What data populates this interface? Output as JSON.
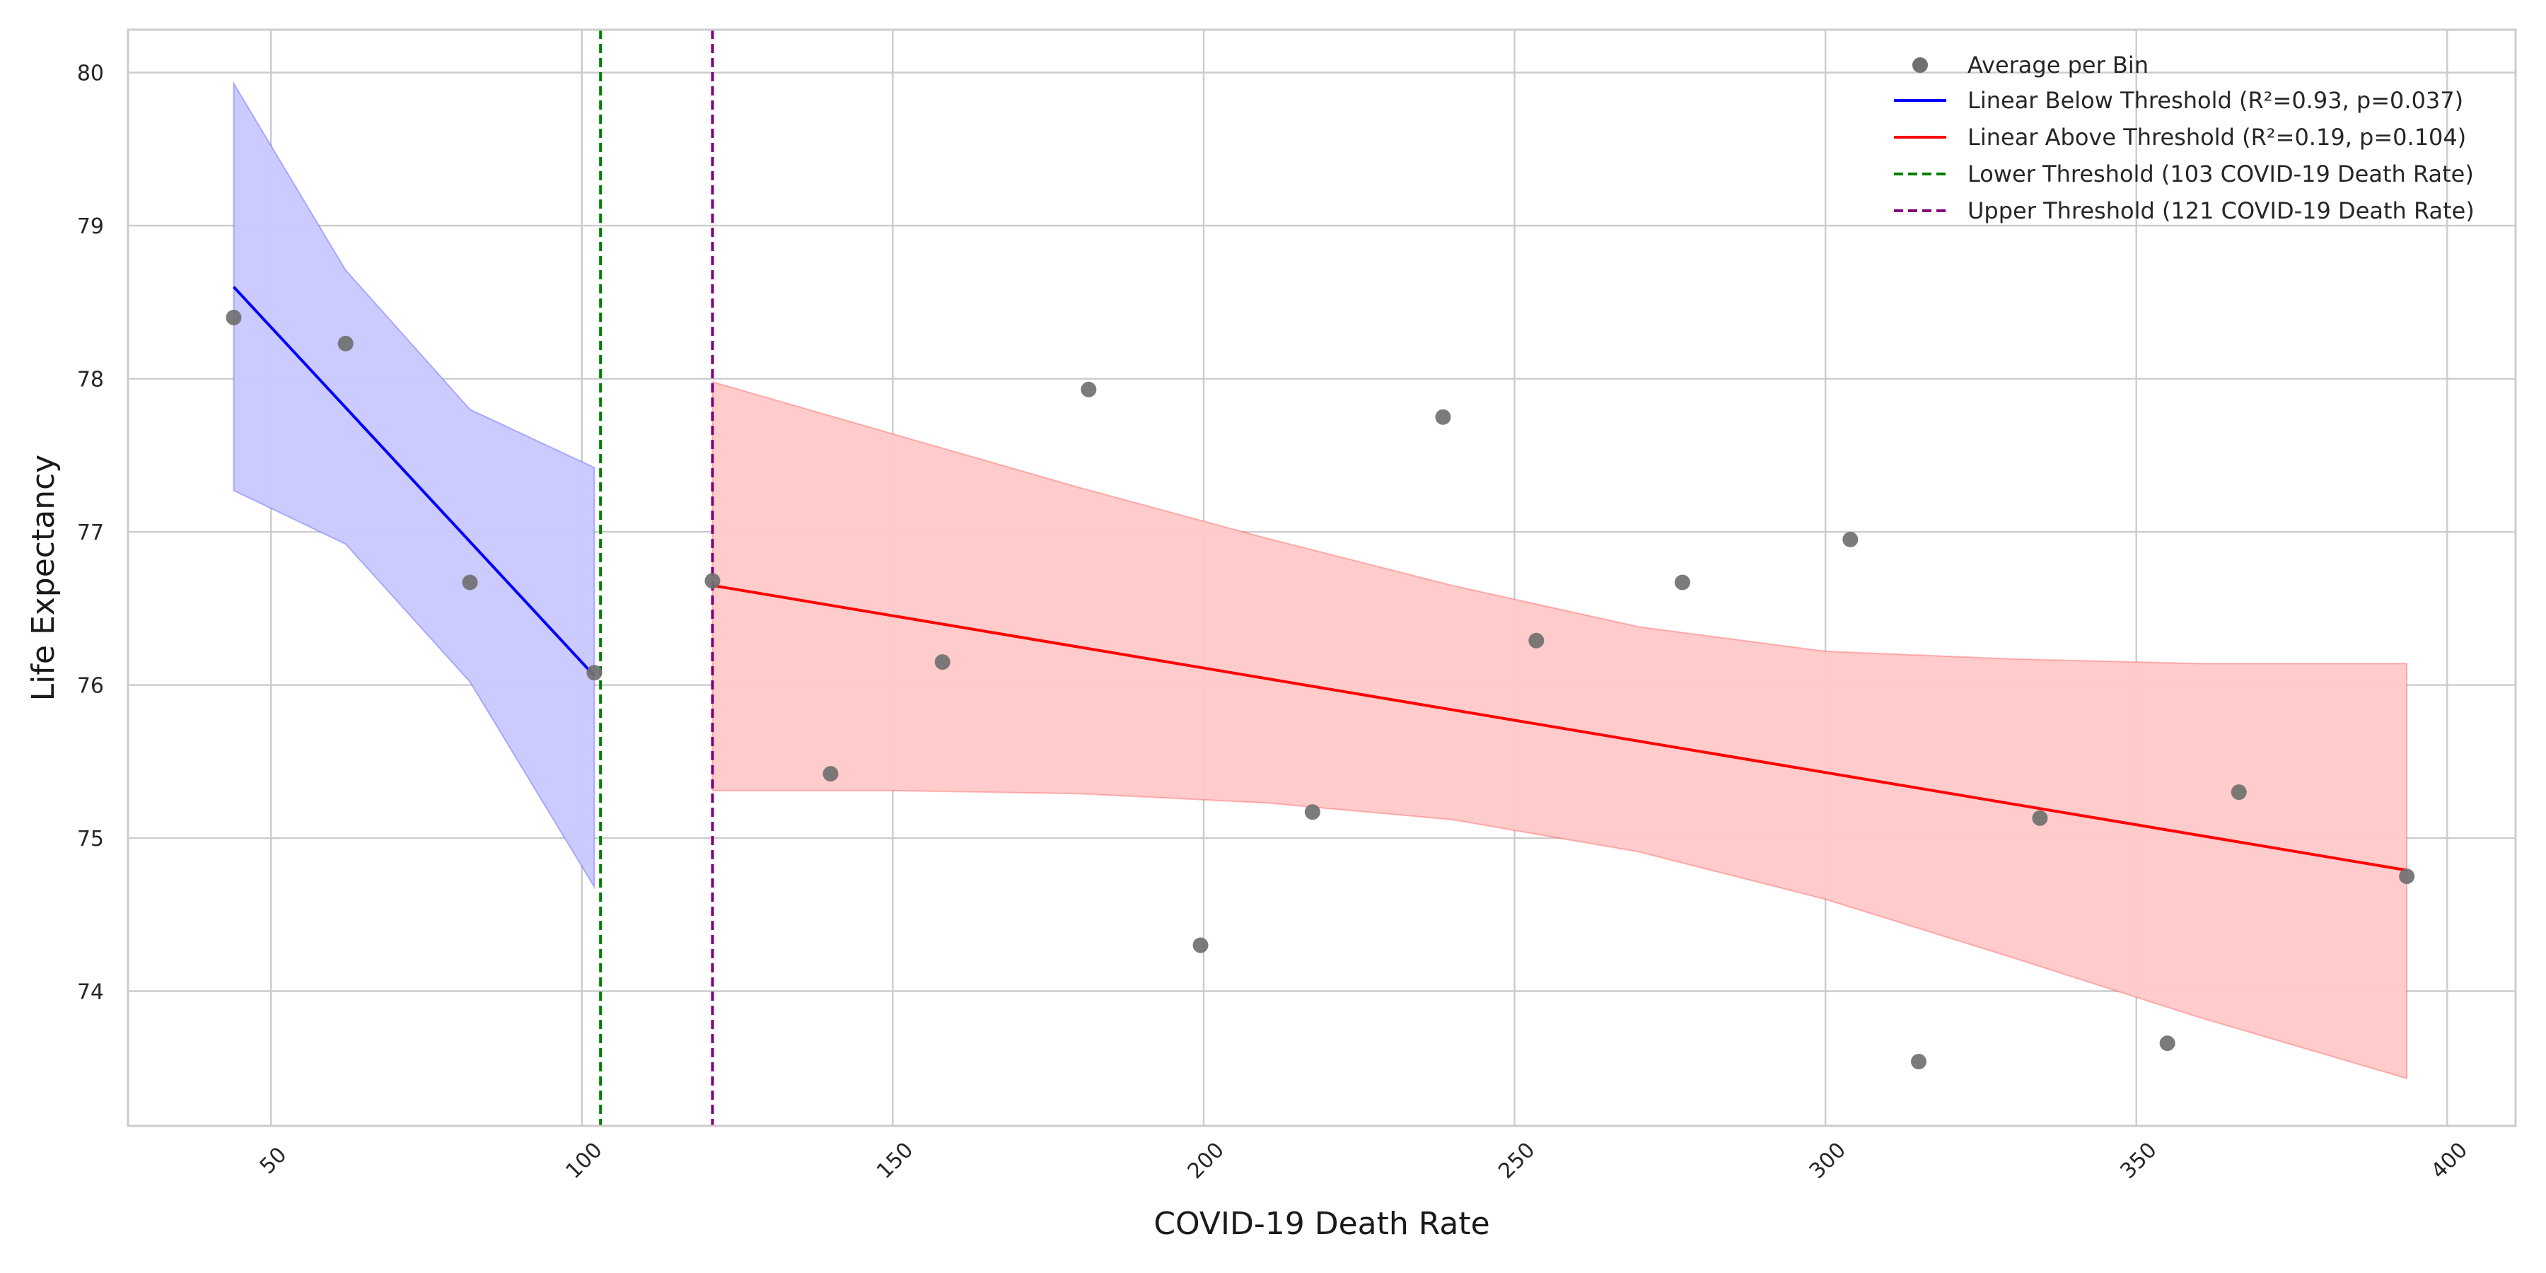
{
  "chart_data": {
    "type": "scatter",
    "title": "",
    "xlabel": "COVID-19 Death Rate",
    "ylabel": "Life Expectancy",
    "xlim": [
      27,
      411
    ],
    "ylim": [
      73.12,
      80.28
    ],
    "grid": true,
    "legend_position": "top-right",
    "x_ticks": [
      50,
      100,
      150,
      200,
      250,
      300,
      350,
      400
    ],
    "x_tick_labels": [
      "50",
      "100",
      "150",
      "200",
      "250",
      "300",
      "350",
      "400"
    ],
    "y_ticks": [
      74,
      75,
      76,
      77,
      78,
      79,
      80
    ],
    "y_tick_labels": [
      "74",
      "75",
      "76",
      "77",
      "78",
      "79",
      "80"
    ],
    "points": {
      "name": "Average per Bin",
      "color": "#707070",
      "x": [
        44,
        62,
        82,
        102,
        121,
        140,
        158,
        181.5,
        199.5,
        217.5,
        238.5,
        253.5,
        277,
        304,
        315,
        334.5,
        355,
        366.5,
        393.5
      ],
      "y": [
        78.4,
        78.23,
        76.67,
        76.08,
        76.68,
        75.42,
        76.15,
        77.93,
        74.3,
        75.17,
        77.75,
        76.29,
        76.67,
        76.95,
        73.54,
        75.13,
        73.66,
        75.3,
        74.75
      ]
    },
    "series": [
      {
        "name": "Linear Below Threshold (R²=0.93, p=0.037)",
        "color": "#0000ff",
        "band_color": "#c8c8ff",
        "x": [
          44,
          102
        ],
        "y": [
          78.6,
          76.06
        ],
        "ci_x": [
          44,
          62,
          82,
          102
        ],
        "ci_upper": [
          79.93,
          78.71,
          77.8,
          77.42
        ],
        "ci_lower": [
          77.27,
          76.92,
          76.02,
          74.68
        ]
      },
      {
        "name": "Linear Above Threshold (R²=0.19, p=0.104)",
        "color": "#ff0000",
        "band_color": "#ffc8c8",
        "x": [
          121,
          393.5
        ],
        "y": [
          76.65,
          74.79
        ],
        "ci_x": [
          121,
          150,
          180,
          210,
          240,
          270,
          300,
          330,
          360,
          393.5
        ],
        "ci_upper": [
          77.98,
          77.64,
          77.29,
          76.96,
          76.65,
          76.38,
          76.22,
          76.17,
          76.14,
          76.14
        ],
        "ci_lower": [
          75.31,
          75.31,
          75.29,
          75.23,
          75.12,
          74.91,
          74.6,
          74.22,
          73.83,
          73.43
        ]
      }
    ],
    "thresholds": [
      {
        "name": "Lower Threshold (103 COVID-19 Death Rate)",
        "value": 103,
        "color": "#008000"
      },
      {
        "name": "Upper Threshold (121 COVID-19 Death Rate)",
        "value": 121,
        "color": "#800080"
      }
    ]
  }
}
